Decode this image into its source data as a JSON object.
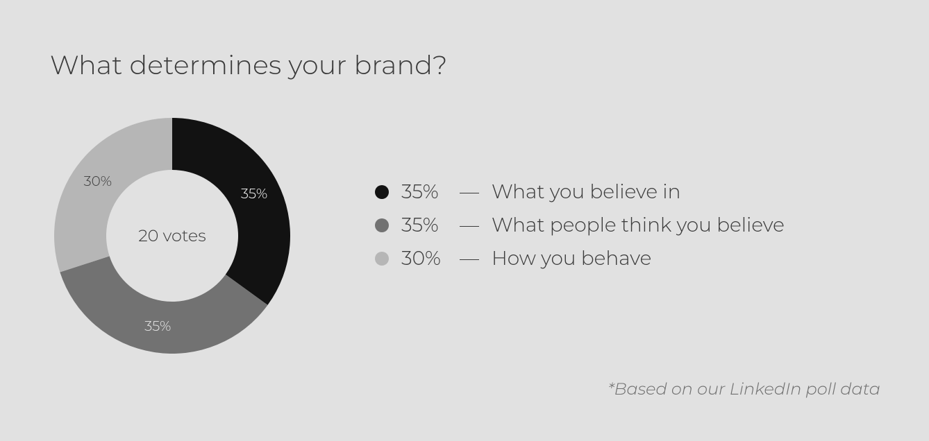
{
  "chart": {
    "type": "donut",
    "title": "What determines your brand?",
    "title_fontsize": 38,
    "title_color": "#3a3a3a",
    "background_color": "#e1e1e1",
    "center_label": "20 votes",
    "center_label_fontsize": 24,
    "center_label_color": "#3a3a3a",
    "outer_radius": 170,
    "inner_radius": 95,
    "start_angle_deg": 0,
    "slice_label_fontsize": 20,
    "slices": [
      {
        "label": "What you believe in",
        "value": 35,
        "pct_label": "35%",
        "color": "#121212",
        "label_color": "#ffffff"
      },
      {
        "label": "What people think you believe",
        "value": 35,
        "pct_label": "35%",
        "color": "#727272",
        "label_color": "#e8e8e8"
      },
      {
        "label": "How you behave",
        "value": 30,
        "pct_label": "30%",
        "color": "#b6b6b6",
        "label_color": "#3a3a3a"
      }
    ],
    "legend": {
      "fontsize": 28,
      "text_color": "#3a3a3a",
      "dash": "—"
    },
    "footnote": "*Based on our LinkedIn poll data",
    "footnote_fontsize": 24,
    "footnote_color": "#6f6f6f"
  }
}
